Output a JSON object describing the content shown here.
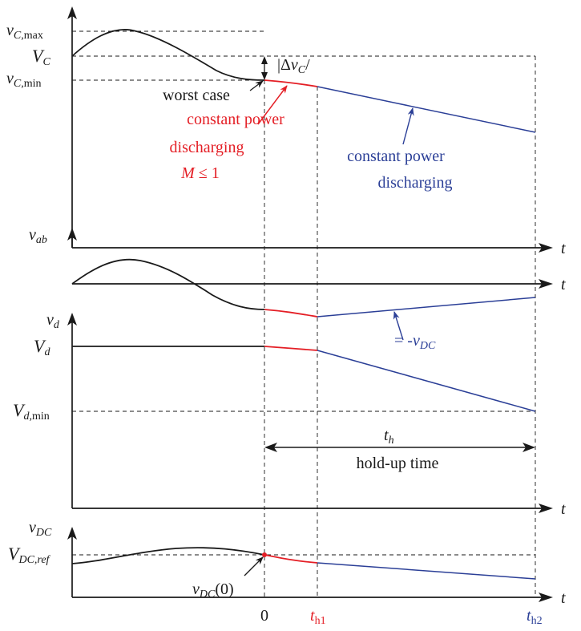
{
  "colors": {
    "black": "#1a1a1a",
    "red": "#e41e25",
    "blue": "#2b3f97"
  },
  "top_panel": {
    "y_label": "v",
    "y_label_sub": "C",
    "vcmax_main": "v",
    "vcmax_sub": "C,",
    "vcmax_sub2": "max",
    "vc_main": "V",
    "vc_sub": "C",
    "vcmin_main": "v",
    "vcmin_sub": "C,",
    "vcmin_sub2": "min",
    "delta_pre": "|Δ",
    "delta_v": "v",
    "delta_sub": "C",
    "delta_post": "/",
    "worst_case": "worst case",
    "red_line1": "constant power",
    "red_line2": "discharging",
    "red_m": "M",
    "red_le": " ≤ 1",
    "blue_line1": "constant power",
    "blue_line2": "discharging",
    "t_axis": "t"
  },
  "vab_panel": {
    "label_main": "v",
    "label_sub": "ab",
    "t_axis": "t"
  },
  "vd_panel": {
    "label_main": "v",
    "label_sub": "d",
    "Vd_main": "V",
    "Vd_sub": "d",
    "Vdmin_main": "V",
    "Vdmin_sub": "d,",
    "Vdmin_sub2": "min",
    "eq_text": "= -",
    "eq_v": "v",
    "eq_sub": "DC",
    "th_main": "t",
    "th_sub": "h",
    "holdup": "hold-up time",
    "t_axis": "t"
  },
  "dc_panel": {
    "label_main": "v",
    "label_sub": "DC",
    "ref_main": "V",
    "ref_sub": "DC,ref",
    "v0_main": "v",
    "v0_sub": "DC",
    "v0_arg": "(0)",
    "t_axis": "t"
  },
  "time_axis": {
    "zero": "0",
    "th1_main": "t",
    "th1_sub": "h1",
    "th2_main": "t",
    "th2_sub": "h2"
  }
}
